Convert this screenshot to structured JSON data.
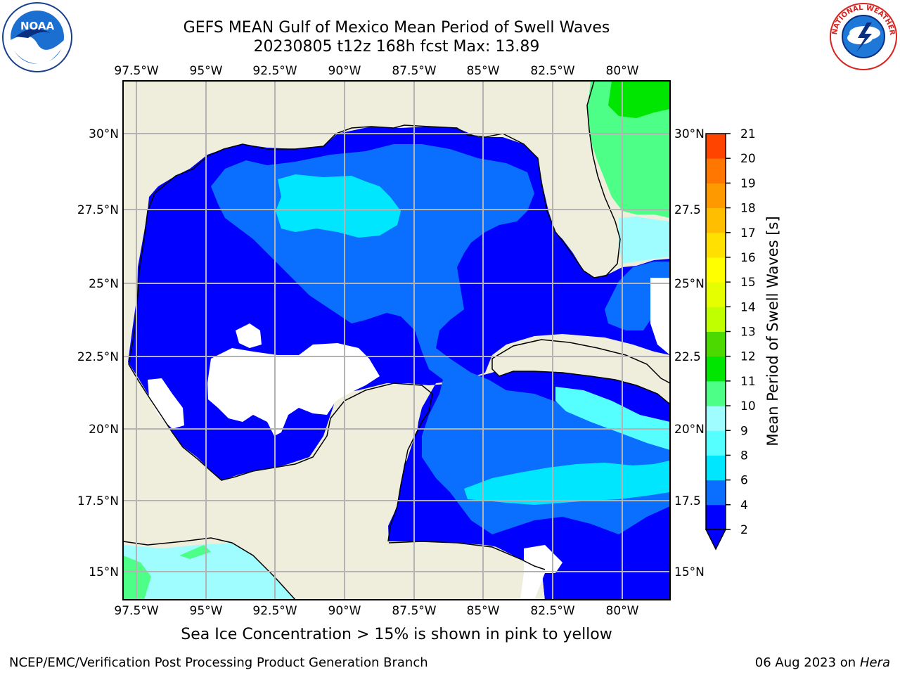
{
  "title": {
    "line1": "GEFS MEAN Gulf of Mexico Mean Period of Swell Waves",
    "line2": "20230805 t12z 168h fcst   Max: 13.89"
  },
  "lon_labels": [
    "97.5°W",
    "95°W",
    "92.5°W",
    "90°W",
    "87.5°W",
    "85°W",
    "82.5°W",
    "80°W"
  ],
  "lat_labels_left": [
    "30°N",
    "27.5°N",
    "25°N",
    "22.5°N",
    "20°N",
    "17.5°N",
    "15°N"
  ],
  "lat_labels_right": [
    "30°N",
    "27.5",
    "25°N",
    "22.5",
    "20°N",
    "17.5",
    "15°N"
  ],
  "colorbar": {
    "label": "Mean Period of Swell Waves [s]",
    "ticks": [
      "2",
      "4",
      "6",
      "8",
      "9",
      "10",
      "11",
      "12",
      "13",
      "14",
      "15",
      "16",
      "17",
      "18",
      "19",
      "20",
      "21"
    ],
    "colors": [
      "#0000ff",
      "#0a6fff",
      "#00e6ff",
      "#55ffff",
      "#9ffdff",
      "#4dff86",
      "#00e600",
      "#4cd900",
      "#bfff00",
      "#e6ff00",
      "#ffff00",
      "#ffe000",
      "#ffbf00",
      "#ff9900",
      "#ff7700",
      "#ff4400",
      "#ff1a00"
    ]
  },
  "legend_note": "Sea Ice Concentration > 15% is shown in pink to yellow",
  "footer": {
    "credit": "NCEP/EMC/Verification Post Processing Product Generation Branch",
    "date": "06 Aug 2023 on",
    "machine": "Hera"
  },
  "logos": {
    "noaa_text": "NOAA",
    "nws_text": "NATIONAL WEATHER SERVICE"
  },
  "map_colors": {
    "land": "#efeedc",
    "deep_blue": "#0000ff",
    "mid_blue": "#0a6fff",
    "cyan": "#00e6ff",
    "light_cyan": "#9ffdff",
    "green": "#4dff86",
    "bright_green": "#00e600"
  }
}
